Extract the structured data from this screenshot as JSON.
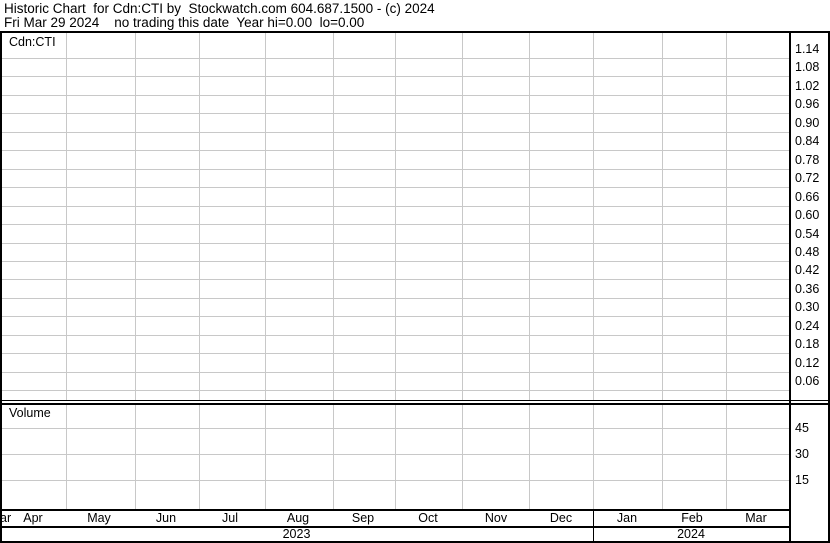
{
  "header": {
    "line1": "Historic Chart  for Cdn:CTI by  Stockwatch.com 604.687.1500 - (c) 2024",
    "line2": "Fri Mar 29 2024    no trading this date  Year hi=0.00  lo=0.00"
  },
  "chart_data": [
    {
      "type": "line",
      "title": "Cdn:CTI",
      "series": [],
      "y_ticks": [
        "1.14",
        "1.08",
        "1.02",
        "0.96",
        "0.90",
        "0.84",
        "0.78",
        "0.72",
        "0.66",
        "0.60",
        "0.54",
        "0.48",
        "0.42",
        "0.36",
        "0.30",
        "0.24",
        "0.18",
        "0.12",
        "0.06"
      ],
      "grid": true,
      "y_axis_side": "right"
    },
    {
      "type": "bar",
      "title": "Volume",
      "series": [],
      "y_ticks": [
        "45",
        "30",
        "15"
      ],
      "grid": true,
      "y_axis_side": "right"
    }
  ],
  "x_axis": {
    "months": [
      "ar",
      "Apr",
      "May",
      "Jun",
      "Jul",
      "Aug",
      "Sep",
      "Oct",
      "Nov",
      "Dec",
      "Jan",
      "Feb",
      "Mar"
    ],
    "years": [
      "2023",
      "2024"
    ]
  },
  "colors": {
    "grid": "#c8c8c8",
    "border": "#000000",
    "background": "#ffffff"
  }
}
